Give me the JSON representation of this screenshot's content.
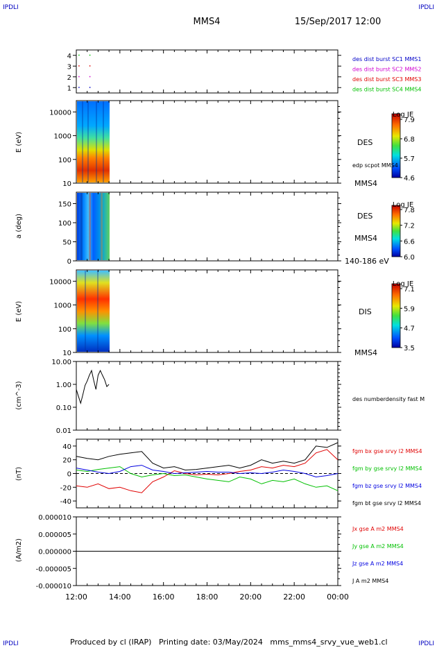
{
  "corner_labels": {
    "top_left": "IPDLI",
    "top_right": "IPDLI",
    "bottom_left": "IPDLI",
    "bottom_right": "IPDLI"
  },
  "header": {
    "spacecraft": "MMS4",
    "datetime": "15/Sep/2017 12:00"
  },
  "footer": {
    "text": "Produced by cl (IRAP)   Printing date: 03/May/2024   mms_mms4_srvy_vue_web1.cl"
  },
  "colors": {
    "mms1": "#0000c8",
    "mms2": "#d000d0",
    "mms3": "#e00000",
    "mms4": "#00c000",
    "bx": "#e00000",
    "by": "#00c000",
    "bz": "#0000e0",
    "bt": "#000000"
  },
  "x_axis": {
    "ticks": [
      "12:00",
      "14:00",
      "16:00",
      "18:00",
      "20:00",
      "22:00",
      "00:00"
    ],
    "range_hours": [
      12,
      24
    ]
  },
  "panels": {
    "p1": {
      "yticks": [
        "4",
        "3",
        "2",
        "1"
      ],
      "legend": [
        "des dist burst SC1 MMS1",
        "des dist burst SC2 MMS2",
        "des dist burst SC3 MMS3",
        "des dist burst SC4 MMS4"
      ]
    },
    "p2": {
      "ylabel": "E (eV)",
      "yticks": [
        "10000",
        "1000",
        "100",
        "10"
      ],
      "name": "DES",
      "sublabel": "edp scpot MMS4",
      "sc": "MMS4",
      "colorbar": {
        "title": "Log JE",
        "ticks": [
          "7.9",
          "6.8",
          "5.7",
          "4.6"
        ]
      }
    },
    "p3": {
      "ylabel": "a (deg)",
      "yticks": [
        "150",
        "100",
        "50",
        "0"
      ],
      "name": "DES",
      "sc": "MMS4",
      "energy": "140-186 eV",
      "colorbar": {
        "title": "Log JE",
        "ticks": [
          "7.8",
          "7.2",
          "6.6",
          "6.0"
        ]
      }
    },
    "p4": {
      "ylabel": "E (eV)",
      "yticks": [
        "10000",
        "1000",
        "100",
        "10"
      ],
      "name": "DIS",
      "sc": "MMS4",
      "colorbar": {
        "title": "Log JE",
        "ticks": [
          "7.1",
          "5.9",
          "4.7",
          "3.5"
        ]
      }
    },
    "p5": {
      "ylabel": "(cm^-3)",
      "yticks": [
        "10.00",
        "1.00",
        "0.10",
        "0.01"
      ],
      "legend": [
        "des numberdensity fast M"
      ]
    },
    "p6": {
      "ylabel": "(nT)",
      "yticks": [
        "40",
        "20",
        "0",
        "-20",
        "-40"
      ],
      "legend": [
        "fgm bx gse srvy l2 MMS4",
        "fgm by gse srvy l2 MMS4",
        "fgm bz gse srvy l2 MMS4",
        "fgm bt gse srvy l2 MMS4"
      ]
    },
    "p7": {
      "ylabel": "(A/m2)",
      "yticks": [
        "0.000010",
        "0.000005",
        "0.000000",
        "-0.000005",
        "-0.000010"
      ],
      "legend": [
        "Jx gse A m2 MMS4",
        "Jy gse A m2 MMS4",
        "Jz gse A m2 MMS4",
        "J A m2 MMS4"
      ]
    }
  },
  "chart_data": [
    {
      "type": "scatter",
      "panel": "burst availability",
      "ylim": [
        0.5,
        4.5
      ],
      "series": [
        {
          "name": "des dist burst SC1 MMS1",
          "x_hours": [
            12.1,
            12.6
          ],
          "y": [
            1,
            1
          ]
        },
        {
          "name": "des dist burst SC2 MMS2",
          "x_hours": [
            12.1,
            12.6
          ],
          "y": [
            2,
            2
          ]
        },
        {
          "name": "des dist burst SC3 MMS3",
          "x_hours": [
            12.1,
            12.6
          ],
          "y": [
            3,
            3
          ]
        },
        {
          "name": "des dist burst SC4 MMS4",
          "x_hours": [
            12.1,
            12.6
          ],
          "y": [
            4,
            4
          ]
        }
      ]
    },
    {
      "type": "heatmap",
      "panel": "DES energy spectrogram",
      "data_coverage_hours": [
        12.0,
        13.5
      ],
      "y_scale": "log",
      "ylim": [
        10,
        30000
      ],
      "zlim": [
        4.6,
        7.9
      ]
    },
    {
      "type": "heatmap",
      "panel": "DES pitch angle 140-186 eV",
      "data_coverage_hours": [
        12.0,
        13.5
      ],
      "ylim": [
        0,
        180
      ],
      "zlim": [
        6.0,
        7.8
      ]
    },
    {
      "type": "heatmap",
      "panel": "DIS energy spectrogram",
      "data_coverage_hours": [
        12.0,
        13.5
      ],
      "y_scale": "log",
      "ylim": [
        10,
        30000
      ],
      "zlim": [
        3.5,
        7.1
      ]
    },
    {
      "type": "line",
      "panel": "electron number density",
      "y_scale": "log",
      "ylim": [
        0.01,
        10
      ],
      "series": [
        {
          "name": "des numberdensity fast M",
          "x_hours": [
            12.0,
            12.1,
            12.2,
            12.3,
            12.4,
            12.5,
            12.6,
            12.7,
            12.8,
            12.9,
            13.0,
            13.1,
            13.2,
            13.3,
            13.4,
            13.5
          ],
          "y": [
            0.6,
            0.3,
            0.15,
            0.35,
            0.9,
            1.4,
            2.5,
            4.0,
            1.5,
            0.6,
            2.5,
            4.0,
            2.5,
            1.6,
            0.8,
            1.0
          ]
        }
      ]
    },
    {
      "type": "line",
      "panel": "magnetic field GSE",
      "ylim": [
        -50,
        50
      ],
      "x_hours": [
        12.0,
        12.5,
        13.0,
        13.5,
        14.0,
        14.5,
        15.0,
        15.5,
        16.0,
        16.5,
        17.0,
        17.5,
        18.0,
        18.5,
        19.0,
        19.5,
        20.0,
        20.5,
        21.0,
        21.5,
        22.0,
        22.5,
        23.0,
        23.5,
        24.0
      ],
      "series": [
        {
          "name": "fgm bx gse srvy l2 MMS4",
          "values": [
            -18,
            -20,
            -15,
            -22,
            -20,
            -25,
            -28,
            -12,
            -5,
            4,
            0,
            -2,
            -1,
            -2,
            0,
            3,
            5,
            10,
            8,
            12,
            10,
            15,
            30,
            35,
            20
          ]
        },
        {
          "name": "fgm by gse srvy l2 MMS4",
          "values": [
            5,
            3,
            6,
            8,
            10,
            0,
            -5,
            -2,
            0,
            -3,
            -2,
            -5,
            -8,
            -10,
            -12,
            -5,
            -8,
            -15,
            -10,
            -12,
            -8,
            -15,
            -20,
            -18,
            -25
          ]
        },
        {
          "name": "fgm bz gse srvy l2 MMS4",
          "values": [
            8,
            5,
            2,
            0,
            3,
            10,
            12,
            5,
            3,
            0,
            1,
            2,
            3,
            2,
            2,
            0,
            1,
            0,
            2,
            5,
            3,
            0,
            -5,
            -3,
            0
          ]
        },
        {
          "name": "fgm bt gse srvy l2 MMS4",
          "values": [
            25,
            22,
            20,
            25,
            28,
            30,
            32,
            15,
            8,
            10,
            5,
            6,
            8,
            10,
            12,
            8,
            12,
            20,
            15,
            18,
            15,
            20,
            40,
            38,
            45
          ]
        }
      ]
    },
    {
      "type": "line",
      "panel": "current density",
      "ylim": [
        -1e-05,
        1e-05
      ],
      "series": [
        {
          "name": "Jx gse A m2 MMS4",
          "x_hours": [
            12,
            24
          ],
          "values": [
            0,
            0
          ]
        },
        {
          "name": "Jy gse A m2 MMS4",
          "x_hours": [
            12,
            24
          ],
          "values": [
            0,
            0
          ]
        },
        {
          "name": "Jz gse A m2 MMS4",
          "x_hours": [
            12,
            24
          ],
          "values": [
            0,
            0
          ]
        },
        {
          "name": "J A m2 MMS4",
          "x_hours": [
            12,
            24
          ],
          "values": [
            0,
            0
          ]
        }
      ]
    }
  ]
}
